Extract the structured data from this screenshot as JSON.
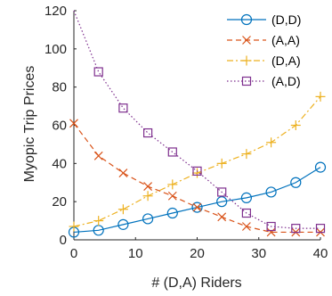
{
  "chart_data": {
    "type": "line",
    "title": "",
    "xlabel": "# (D,A) Riders",
    "ylabel": "Myopic Trip Prices",
    "xlim": [
      0,
      40
    ],
    "ylim": [
      0,
      120
    ],
    "xticks": [
      0,
      10,
      20,
      30,
      40
    ],
    "yticks": [
      0,
      20,
      40,
      60,
      80,
      100,
      120
    ],
    "grid": false,
    "legend_position": "top-right",
    "x": [
      0,
      4,
      8,
      12,
      16,
      20,
      24,
      28,
      32,
      36,
      40
    ],
    "series": [
      {
        "name": "(D,D)",
        "color": "#0072BD",
        "line_style": "solid",
        "marker": "circle",
        "values": [
          4,
          5,
          8,
          11,
          14,
          17,
          20,
          22,
          25,
          30,
          38
        ],
        "marker_indices": [
          0,
          1,
          2,
          3,
          4,
          5,
          6,
          7,
          8,
          9,
          10
        ]
      },
      {
        "name": "(A,A)",
        "color": "#D95319",
        "line_style": "dashed",
        "marker": "x",
        "values": [
          61,
          44,
          35,
          28,
          23,
          17,
          12,
          7,
          4,
          4,
          4
        ],
        "marker_indices": [
          0,
          1,
          2,
          3,
          4,
          5,
          6,
          7,
          8,
          9,
          10
        ]
      },
      {
        "name": "(D,A)",
        "color": "#EDB120",
        "line_style": "dashdot",
        "marker": "plus",
        "values": [
          7,
          10,
          16,
          23,
          29,
          35,
          40,
          45,
          51,
          60,
          75
        ],
        "marker_indices": [
          0,
          1,
          2,
          3,
          4,
          5,
          6,
          7,
          8,
          9,
          10
        ]
      },
      {
        "name": "(A,D)",
        "color": "#7E2F8E",
        "line_style": "dotted",
        "marker": "square",
        "values": [
          120,
          88,
          69,
          56,
          46,
          36,
          25,
          14,
          7,
          6,
          6
        ],
        "marker_indices": [
          1,
          2,
          3,
          4,
          5,
          6,
          7,
          8,
          9,
          10
        ]
      }
    ]
  }
}
